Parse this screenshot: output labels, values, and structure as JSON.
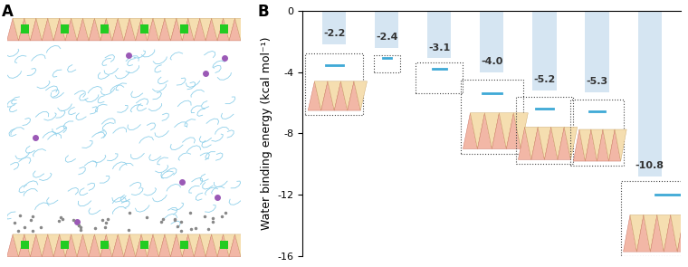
{
  "panel_labels": [
    "A",
    "B"
  ],
  "chart_data": {
    "type": "bar",
    "y_label": "Water binding energy (kcal mol⁻¹)",
    "categories": [
      null,
      null,
      null,
      null,
      null,
      null,
      null
    ],
    "values": [
      -2.2,
      -2.4,
      -3.1,
      -4.0,
      -5.2,
      -5.3,
      -10.8
    ],
    "color": "#d5e5f2",
    "ylim": [
      -16,
      0
    ],
    "yticks": [
      -16,
      -12,
      -8,
      -4,
      0
    ],
    "data_labels": true,
    "tick_labels": "y"
  }
}
